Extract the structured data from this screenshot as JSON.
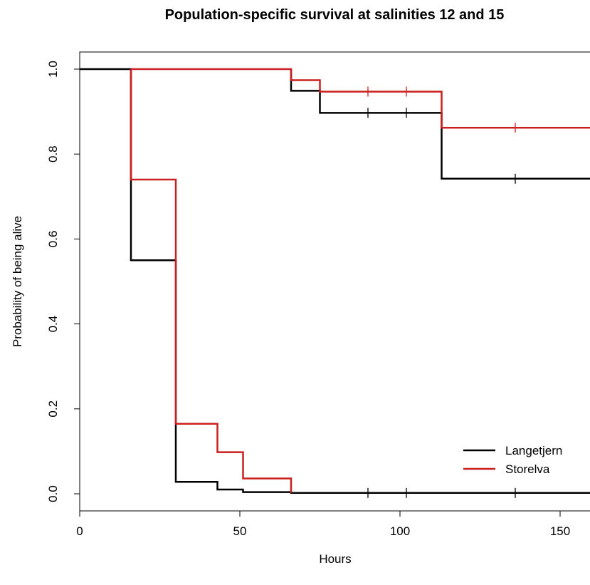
{
  "chart_data": {
    "type": "line",
    "title": "Population-specific survival at salinities 12 and 15",
    "xlabel": "Hours",
    "ylabel": "Probability of being alive",
    "xlim": [
      0,
      158
    ],
    "ylim": [
      -0.04,
      1.04
    ],
    "x_ticks": [
      0,
      50,
      100,
      150
    ],
    "y_ticks": [
      0.0,
      0.2,
      0.4,
      0.6,
      0.8,
      1.0
    ],
    "x_tick_labels": [
      "0",
      "50",
      "100",
      "150"
    ],
    "y_tick_labels": [
      "0.0",
      "0.2",
      "0.4",
      "0.6",
      "0.8",
      "1.0"
    ],
    "grid": false,
    "legend_position": "bottom-right",
    "series": [
      {
        "name": "Langetjern",
        "color": "#000000",
        "step": true,
        "points": [
          [
            0,
            1.0
          ],
          [
            16,
            1.0
          ],
          [
            16,
            0.55
          ],
          [
            30,
            0.55
          ],
          [
            30,
            0.028
          ],
          [
            43,
            0.028
          ],
          [
            43,
            0.01
          ],
          [
            51,
            0.01
          ],
          [
            51,
            0.004
          ],
          [
            66,
            0.004
          ],
          [
            66,
            0.002
          ],
          [
            160,
            0.002
          ]
        ],
        "censor_x": [
          90,
          102,
          136
        ],
        "censor_y": [
          0.002,
          0.002,
          0.002
        ]
      },
      {
        "name": "Langetjern",
        "color": "#000000",
        "step": true,
        "points": [
          [
            66,
            1.0
          ],
          [
            66,
            0.949
          ],
          [
            75,
            0.949
          ],
          [
            75,
            0.897
          ],
          [
            113,
            0.897
          ],
          [
            113,
            0.742
          ],
          [
            160,
            0.742
          ]
        ],
        "censor_x": [
          90,
          102,
          136
        ],
        "censor_y": [
          0.897,
          0.897,
          0.742
        ]
      },
      {
        "name": "Storelva",
        "color": "#cc1f1f",
        "step": true,
        "points": [
          [
            16,
            1.0
          ],
          [
            66,
            1.0
          ],
          [
            66,
            0.974
          ],
          [
            75,
            0.974
          ],
          [
            75,
            0.947
          ],
          [
            113,
            0.947
          ],
          [
            113,
            0.862
          ],
          [
            160,
            0.862
          ]
        ],
        "censor_x": [
          90,
          102,
          136
        ],
        "censor_y": [
          0.947,
          0.947,
          0.862
        ]
      },
      {
        "name": "Storelva",
        "color": "#cc1f1f",
        "step": true,
        "points": [
          [
            16,
            1.0
          ],
          [
            16,
            0.74
          ],
          [
            30,
            0.74
          ],
          [
            30,
            0.165
          ],
          [
            43,
            0.165
          ],
          [
            43,
            0.098
          ],
          [
            51,
            0.098
          ],
          [
            51,
            0.036
          ],
          [
            66,
            0.036
          ],
          [
            66,
            0.002
          ]
        ],
        "censor_x": [],
        "censor_y": []
      }
    ],
    "legend": [
      {
        "label": "Langetjern",
        "color": "#000000"
      },
      {
        "label": "Storelva",
        "color": "#cc1f1f"
      }
    ]
  }
}
